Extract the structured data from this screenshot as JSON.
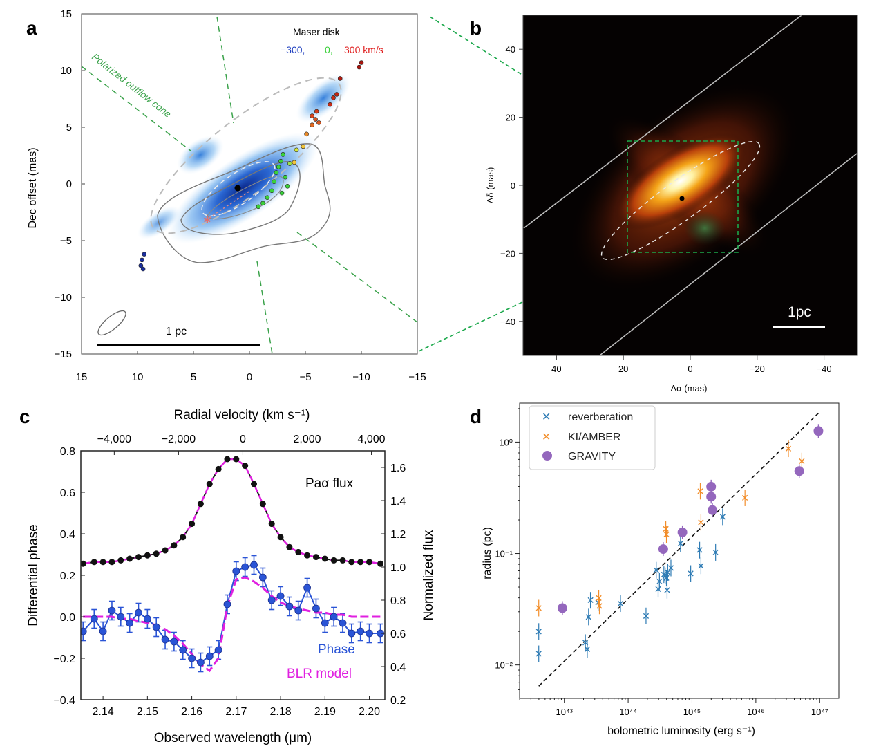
{
  "panel_labels": {
    "a": "a",
    "b": "b",
    "c": "c",
    "d": "d"
  },
  "chart_data": [
    {
      "id": "a",
      "type": "scatter",
      "xlabel": "",
      "ylabel": "Dec offset (mas)",
      "xlim": [
        15,
        -15
      ],
      "ylim": [
        -15,
        15
      ],
      "xticks": [
        15,
        10,
        5,
        0,
        -5,
        -10,
        -15
      ],
      "yticks": [
        15,
        10,
        5,
        0,
        -5,
        -10,
        -15
      ],
      "legend_title": "Maser disk",
      "legend_velocities": [
        "−300,",
        "0,",
        "300 km/s"
      ],
      "legend_colors": [
        "#1f3fbf",
        "#3bd13b",
        "#e02020"
      ],
      "annotation_cone": "Polarized outflow cone",
      "scalebar_label": "1 pc",
      "center": [
        1,
        0
      ],
      "maser_spots": [
        {
          "x": 9.4,
          "y": -6.2,
          "c": "#1a2f9e"
        },
        {
          "x": 9.6,
          "y": -6.7,
          "c": "#1a2f9e"
        },
        {
          "x": 9.7,
          "y": -7.2,
          "c": "#1a2f9e"
        },
        {
          "x": 9.5,
          "y": -7.5,
          "c": "#1a2f9e"
        },
        {
          "x": -2.4,
          "y": 1.0,
          "c": "#3bd13b"
        },
        {
          "x": -2.6,
          "y": 1.5,
          "c": "#3bd13b"
        },
        {
          "x": -2.8,
          "y": 2.0,
          "c": "#3bd13b"
        },
        {
          "x": -3.0,
          "y": 2.6,
          "c": "#3bd13b"
        },
        {
          "x": -2.2,
          "y": 0.2,
          "c": "#3bd13b"
        },
        {
          "x": -2.0,
          "y": -0.6,
          "c": "#3bd13b"
        },
        {
          "x": -1.6,
          "y": -1.2,
          "c": "#3bd13b"
        },
        {
          "x": -1.2,
          "y": -1.7,
          "c": "#3bd13b"
        },
        {
          "x": -0.8,
          "y": -2.0,
          "c": "#3bd13b"
        },
        {
          "x": -3.2,
          "y": 0.6,
          "c": "#3bd13b"
        },
        {
          "x": -3.4,
          "y": -0.2,
          "c": "#3bd13b"
        },
        {
          "x": -2.9,
          "y": -0.8,
          "c": "#3bd13b"
        },
        {
          "x": -3.6,
          "y": 1.8,
          "c": "#9be04a"
        },
        {
          "x": -4.2,
          "y": 3.0,
          "c": "#d6e83a"
        },
        {
          "x": -4.0,
          "y": 1.9,
          "c": "#f2c53a"
        },
        {
          "x": -4.8,
          "y": 3.3,
          "c": "#f2c53a"
        },
        {
          "x": -5.1,
          "y": 4.4,
          "c": "#e88a2a"
        },
        {
          "x": -5.6,
          "y": 5.2,
          "c": "#e06a22"
        },
        {
          "x": -5.9,
          "y": 5.7,
          "c": "#d9551e"
        },
        {
          "x": -6.2,
          "y": 5.4,
          "c": "#d9551e"
        },
        {
          "x": -5.6,
          "y": 6.0,
          "c": "#d9451a"
        },
        {
          "x": -6.0,
          "y": 6.4,
          "c": "#d03a18"
        },
        {
          "x": -7.2,
          "y": 7.0,
          "c": "#c82b15"
        },
        {
          "x": -7.5,
          "y": 7.6,
          "c": "#c82b15"
        },
        {
          "x": -7.8,
          "y": 7.9,
          "c": "#c02412"
        },
        {
          "x": -8.1,
          "y": 9.3,
          "c": "#b51c10"
        },
        {
          "x": -9.8,
          "y": 10.3,
          "c": "#a8160e"
        },
        {
          "x": -10.0,
          "y": 10.7,
          "c": "#a8160e"
        }
      ]
    },
    {
      "id": "b",
      "type": "heatmap",
      "xlabel": "Δα (mas)",
      "ylabel": "Δδ (mas)",
      "xlim": [
        50,
        -50
      ],
      "ylim": [
        -50,
        50
      ],
      "xticks": [
        40,
        20,
        0,
        -20,
        -40
      ],
      "yticks": [
        40,
        20,
        0,
        -20,
        -40
      ],
      "scalebar_label": "1pc",
      "inset_box": {
        "x0": 18,
        "x1": -15,
        "y0": -20,
        "y1": 13
      },
      "center": [
        2,
        -3
      ]
    },
    {
      "id": "c",
      "type": "line",
      "xlabel": "Observed wavelength (μm)",
      "ylabel_left": "Differential phase",
      "ylabel_right": "Normalized flux",
      "top_axis_label": "Radial velocity (km s⁻¹)",
      "xlim": [
        2.135,
        2.2035
      ],
      "ylim_left": [
        -0.4,
        0.8
      ],
      "ylim_right": [
        0.2,
        1.7
      ],
      "xticks": [
        "2.14",
        "2.15",
        "2.16",
        "2.17",
        "2.18",
        "2.19",
        "2.20"
      ],
      "yticks_left": [
        "−0.4",
        "−0.2",
        "0.0",
        "0.2",
        "0.4",
        "0.6",
        "0.8"
      ],
      "yticks_right": [
        "0.2",
        "0.4",
        "0.6",
        "0.8",
        "1.0",
        "1.2",
        "1.4",
        "1.6"
      ],
      "top_ticks": [
        "−4,000",
        "−2,000",
        "0",
        "2,000",
        "4,000"
      ],
      "label_flux": "Paα flux",
      "label_phase": "Phase",
      "label_model": "BLR model",
      "x": [
        2.1355,
        2.138,
        2.14,
        2.142,
        2.144,
        2.146,
        2.148,
        2.15,
        2.152,
        2.154,
        2.156,
        2.158,
        2.16,
        2.162,
        2.164,
        2.166,
        2.168,
        2.17,
        2.172,
        2.174,
        2.176,
        2.178,
        2.18,
        2.182,
        2.184,
        2.186,
        2.188,
        2.19,
        2.192,
        2.194,
        2.196,
        2.198,
        2.2,
        2.2025
      ],
      "flux": [
        1.02,
        1.03,
        1.03,
        1.03,
        1.04,
        1.05,
        1.06,
        1.07,
        1.08,
        1.1,
        1.13,
        1.18,
        1.26,
        1.38,
        1.5,
        1.59,
        1.65,
        1.65,
        1.61,
        1.5,
        1.38,
        1.26,
        1.18,
        1.12,
        1.09,
        1.07,
        1.06,
        1.05,
        1.04,
        1.04,
        1.03,
        1.03,
        1.03,
        1.02
      ],
      "phase": [
        -0.07,
        -0.01,
        -0.07,
        0.03,
        0.0,
        -0.03,
        0.02,
        -0.01,
        -0.05,
        -0.11,
        -0.12,
        -0.16,
        -0.2,
        -0.22,
        -0.19,
        -0.16,
        0.06,
        0.22,
        0.24,
        0.25,
        0.19,
        0.08,
        0.1,
        0.05,
        0.03,
        0.14,
        0.04,
        -0.03,
        0.0,
        -0.03,
        -0.08,
        -0.07,
        -0.08,
        -0.08
      ],
      "phase_err": 0.045,
      "model": [
        0.0,
        0.0,
        0.0,
        0.0,
        -0.01,
        -0.01,
        -0.02,
        -0.03,
        -0.04,
        -0.06,
        -0.09,
        -0.13,
        -0.18,
        -0.23,
        -0.26,
        -0.2,
        0.05,
        0.18,
        0.19,
        0.17,
        0.14,
        0.1,
        0.07,
        0.05,
        0.04,
        0.03,
        0.02,
        0.02,
        0.01,
        0.01,
        0.0,
        0.0,
        0.0,
        0.0
      ]
    },
    {
      "id": "d",
      "type": "scatter",
      "xlabel": "bolometric luminosity (erg s⁻¹)",
      "ylabel": "radius (pc)",
      "xscale": "log",
      "yscale": "log",
      "xlim_log10": [
        42.3,
        47.3
      ],
      "ylim_log10": [
        -2.3,
        0.35
      ],
      "xticks_log10": [
        43,
        44,
        45,
        46,
        47
      ],
      "yticks_log10": [
        -2,
        -1,
        0
      ],
      "legend_loc": "upper-left",
      "legend": [
        "reverberation",
        "KI/AMBER",
        "GRAVITY"
      ],
      "series_colors": {
        "reverberation": "#2e7bb4",
        "KI/AMBER": "#f28e2b",
        "GRAVITY": "#9467bd"
      },
      "fit_line": {
        "log_x": [
          42.6,
          46.98
        ],
        "log_y": [
          -2.19,
          0.26
        ]
      },
      "series": [
        {
          "name": "reverberation",
          "points": [
            [
              42.6,
              -1.7
            ],
            [
              42.6,
              -1.9
            ],
            [
              43.38,
              -1.57
            ],
            [
              43.33,
              -1.8
            ],
            [
              43.36,
              -1.86
            ],
            [
              43.41,
              -1.42
            ],
            [
              43.53,
              -1.44
            ],
            [
              43.88,
              -1.45
            ],
            [
              44.28,
              -1.56
            ],
            [
              44.44,
              -1.15
            ],
            [
              44.47,
              -1.32
            ],
            [
              44.49,
              -1.25
            ],
            [
              44.56,
              -1.19
            ],
            [
              44.58,
              -1.2
            ],
            [
              44.61,
              -1.33
            ],
            [
              44.6,
              -1.22
            ],
            [
              44.62,
              -1.17
            ],
            [
              44.67,
              -1.13
            ],
            [
              44.82,
              -0.91
            ],
            [
              44.98,
              -1.18
            ],
            [
              45.12,
              -0.97
            ],
            [
              45.14,
              -1.11
            ],
            [
              45.37,
              -0.99
            ],
            [
              45.48,
              -0.67
            ]
          ]
        },
        {
          "name": "KI/AMBER",
          "points": [
            [
              42.6,
              -1.49
            ],
            [
              43.54,
              -1.4
            ],
            [
              43.55,
              -1.47
            ],
            [
              44.59,
              -0.78
            ],
            [
              44.6,
              -0.83
            ],
            [
              45.13,
              -0.44
            ],
            [
              45.14,
              -0.72
            ],
            [
              45.83,
              -0.5
            ],
            [
              46.51,
              -0.06
            ],
            [
              46.72,
              -0.17
            ]
          ]
        },
        {
          "name": "GRAVITY",
          "points": [
            [
              42.97,
              -1.49
            ],
            [
              44.55,
              -0.96
            ],
            [
              44.85,
              -0.81
            ],
            [
              45.3,
              -0.4
            ],
            [
              45.3,
              -0.49
            ],
            [
              45.32,
              -0.61
            ],
            [
              46.68,
              -0.26
            ],
            [
              46.98,
              0.1
            ]
          ]
        }
      ]
    }
  ]
}
